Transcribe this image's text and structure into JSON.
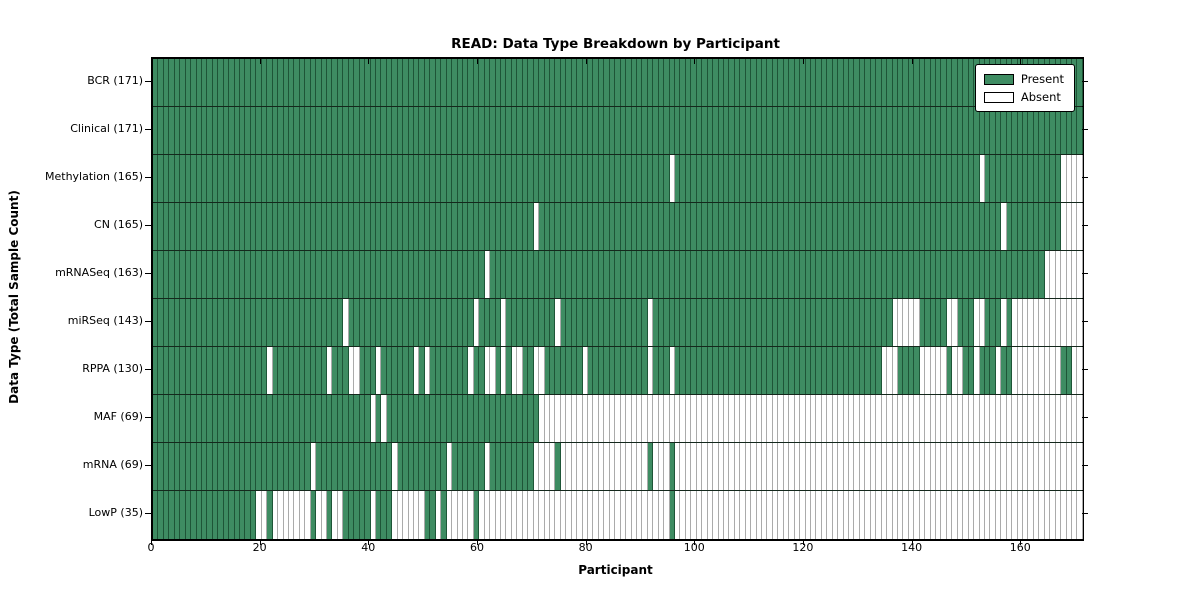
{
  "chart_data": {
    "type": "heatmap",
    "title": "READ: Data Type Breakdown by Participant",
    "xlabel": "Participant",
    "ylabel": "Data Type (Total Sample Count)",
    "x_ticks": [
      0,
      20,
      40,
      60,
      80,
      100,
      120,
      140,
      160
    ],
    "x_range": [
      0,
      171
    ],
    "n_participants": 171,
    "grid": false,
    "legend": {
      "position": "upper right",
      "items": [
        {
          "label": "Present",
          "color": "#3E8C62"
        },
        {
          "label": "Absent",
          "color": "#FFFFFF"
        }
      ]
    },
    "colors": {
      "present_fill": "#3E8C62",
      "present_edge": "#1E5537",
      "absent_fill": "#FFFFFF",
      "absent_edge": "#ABABAB",
      "axis": "#000000"
    },
    "rows": [
      {
        "name": "bcr",
        "label": "BCR (171)",
        "total": 171,
        "present_ranges": [
          [
            0,
            170
          ]
        ]
      },
      {
        "name": "clinical",
        "label": "Clinical (171)",
        "total": 171,
        "present_ranges": [
          [
            0,
            170
          ]
        ]
      },
      {
        "name": "methylation",
        "label": "Methylation (165)",
        "total": 165,
        "present_ranges": [
          [
            0,
            94
          ],
          [
            96,
            151
          ],
          [
            153,
            166
          ]
        ]
      },
      {
        "name": "cn",
        "label": "CN (165)",
        "total": 165,
        "present_ranges": [
          [
            0,
            69
          ],
          [
            71,
            155
          ],
          [
            157,
            166
          ]
        ]
      },
      {
        "name": "mrnaseq",
        "label": "mRNASeq (163)",
        "total": 163,
        "present_ranges": [
          [
            0,
            60
          ],
          [
            62,
            163
          ]
        ]
      },
      {
        "name": "mirseq",
        "label": "miRSeq (143)",
        "total": 143,
        "present_ranges": [
          [
            0,
            34
          ],
          [
            36,
            58
          ],
          [
            60,
            63
          ],
          [
            65,
            73
          ],
          [
            75,
            90
          ],
          [
            92,
            135
          ],
          [
            141,
            145
          ],
          [
            148,
            150
          ],
          [
            153,
            155
          ],
          [
            157,
            157
          ]
        ]
      },
      {
        "name": "rppa",
        "label": "RPPA (130)",
        "total": 130,
        "present_ranges": [
          [
            0,
            20
          ],
          [
            22,
            31
          ],
          [
            33,
            35
          ],
          [
            38,
            40
          ],
          [
            42,
            47
          ],
          [
            49,
            49
          ],
          [
            51,
            57
          ],
          [
            59,
            60
          ],
          [
            63,
            63
          ],
          [
            65,
            65
          ],
          [
            68,
            69
          ],
          [
            72,
            78
          ],
          [
            80,
            90
          ],
          [
            92,
            94
          ],
          [
            96,
            133
          ],
          [
            137,
            140
          ],
          [
            146,
            146
          ],
          [
            149,
            150
          ],
          [
            152,
            154
          ],
          [
            156,
            157
          ],
          [
            167,
            168
          ]
        ]
      },
      {
        "name": "maf",
        "label": "MAF (69)",
        "total": 69,
        "present_ranges": [
          [
            0,
            39
          ],
          [
            41,
            41
          ],
          [
            43,
            70
          ]
        ]
      },
      {
        "name": "mrna",
        "label": "mRNA (69)",
        "total": 69,
        "present_ranges": [
          [
            0,
            28
          ],
          [
            30,
            43
          ],
          [
            45,
            53
          ],
          [
            55,
            60
          ],
          [
            62,
            69
          ],
          [
            74,
            74
          ],
          [
            91,
            91
          ],
          [
            95,
            95
          ]
        ]
      },
      {
        "name": "lowp",
        "label": "LowP (35)",
        "total": 35,
        "present_ranges": [
          [
            0,
            18
          ],
          [
            21,
            21
          ],
          [
            29,
            29
          ],
          [
            32,
            32
          ],
          [
            35,
            39
          ],
          [
            41,
            43
          ],
          [
            50,
            51
          ],
          [
            53,
            53
          ],
          [
            59,
            59
          ],
          [
            95,
            95
          ]
        ]
      }
    ]
  }
}
